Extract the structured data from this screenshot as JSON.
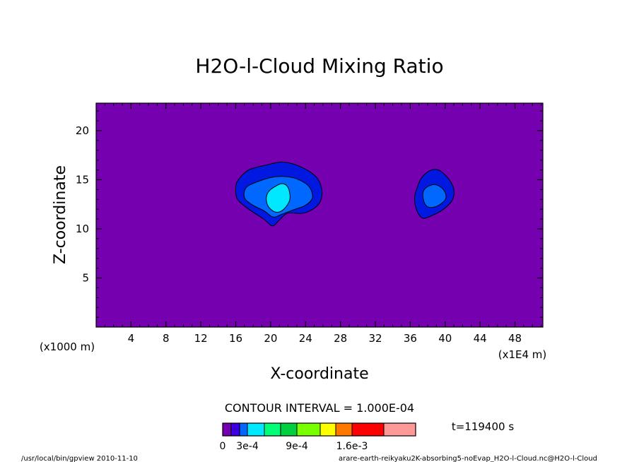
{
  "chart_data": {
    "type": "contour",
    "title": "H2O-l-Cloud Mixing Ratio",
    "xlabel": "X-coordinate",
    "ylabel": "Z-coordinate",
    "x_unit_left": "(x1000 m)",
    "x_unit_right": "(x1E4 m)",
    "x_ticks": [
      4,
      8,
      12,
      16,
      20,
      24,
      28,
      32,
      36,
      40,
      44,
      48
    ],
    "y_ticks": [
      5,
      10,
      15,
      20
    ],
    "xlim": [
      0,
      51.2
    ],
    "ylim": [
      0,
      22.8
    ],
    "contour_interval_label": "CONTOUR INTERVAL = 1.000E-04",
    "time_label": "t=119400 s",
    "legend_ticks": [
      "0",
      "3e-4",
      "9e-4",
      "1.6e-3"
    ],
    "colorbar_levels": [
      0,
      0.0001,
      0.0002,
      0.0003,
      0.0005,
      0.0007,
      0.0009,
      0.0012,
      0.0014,
      0.0016,
      0.002,
      0.0024
    ],
    "colorbar_colors": [
      "#7500b0",
      "#3c00e0",
      "#0068ff",
      "#00e8ff",
      "#00ff78",
      "#00d040",
      "#78ff00",
      "#ffff00",
      "#ff7800",
      "#ff0000",
      "#ff9898"
    ],
    "background_color": "#7500b0",
    "clouds": [
      {
        "name": "cloud-a",
        "contours": [
          {
            "level": 0.0001,
            "color": "#0018e0",
            "points": [
              [
                16.3,
                15.0
              ],
              [
                17.5,
                16.0
              ],
              [
                19.5,
                16.5
              ],
              [
                21.4,
                16.8
              ],
              [
                23.5,
                16.3
              ],
              [
                25.3,
                15.2
              ],
              [
                25.9,
                13.7
              ],
              [
                25.4,
                12.4
              ],
              [
                23.8,
                11.6
              ],
              [
                22.0,
                11.6
              ],
              [
                21.0,
                10.9
              ],
              [
                20.2,
                10.3
              ],
              [
                19.2,
                11.0
              ],
              [
                17.5,
                12.0
              ],
              [
                16.2,
                13.0
              ],
              [
                16.0,
                14.2
              ]
            ]
          },
          {
            "level": 0.0002,
            "color": "#0068ff",
            "points": [
              [
                17.2,
                14.2
              ],
              [
                18.5,
                14.8
              ],
              [
                20.5,
                15.3
              ],
              [
                22.6,
                15.2
              ],
              [
                24.3,
                14.4
              ],
              [
                24.8,
                13.2
              ],
              [
                24.0,
                12.4
              ],
              [
                22.8,
                12.0
              ],
              [
                21.3,
                11.5
              ],
              [
                20.3,
                11.2
              ],
              [
                19.3,
                11.8
              ],
              [
                17.8,
                12.5
              ],
              [
                17.0,
                13.2
              ]
            ]
          },
          {
            "level": 0.0003,
            "color": "#00e8ff",
            "points": [
              [
                19.7,
                13.7
              ],
              [
                20.3,
                14.2
              ],
              [
                21.3,
                14.6
              ],
              [
                22.0,
                14.2
              ],
              [
                22.2,
                13.0
              ],
              [
                21.5,
                12.0
              ],
              [
                20.6,
                11.7
              ],
              [
                19.8,
                12.2
              ],
              [
                19.5,
                13.0
              ]
            ]
          }
        ]
      },
      {
        "name": "cloud-b",
        "contours": [
          {
            "level": 0.0001,
            "color": "#0018e0",
            "points": [
              [
                36.8,
                14.2
              ],
              [
                37.3,
                15.2
              ],
              [
                38.2,
                15.9
              ],
              [
                39.2,
                16.0
              ],
              [
                40.3,
                15.2
              ],
              [
                41.0,
                14.0
              ],
              [
                40.8,
                12.9
              ],
              [
                39.8,
                12.0
              ],
              [
                38.6,
                11.4
              ],
              [
                37.4,
                11.1
              ],
              [
                36.7,
                12.0
              ],
              [
                36.5,
                13.2
              ]
            ]
          },
          {
            "level": 0.0002,
            "color": "#0068ff",
            "points": [
              [
                37.5,
                13.8
              ],
              [
                38.0,
                14.3
              ],
              [
                38.9,
                14.5
              ],
              [
                39.8,
                14.0
              ],
              [
                40.1,
                13.2
              ],
              [
                39.6,
                12.6
              ],
              [
                38.7,
                12.2
              ],
              [
                37.9,
                12.3
              ],
              [
                37.5,
                13.0
              ]
            ]
          }
        ]
      }
    ]
  },
  "footer": {
    "left": "/usr/local/bin/gpview  2010-11-10",
    "right": "arare-earth-reikyaku2K-absorbing5-noEvap_H2O-l-Cloud.nc@H2O-l-Cloud"
  }
}
